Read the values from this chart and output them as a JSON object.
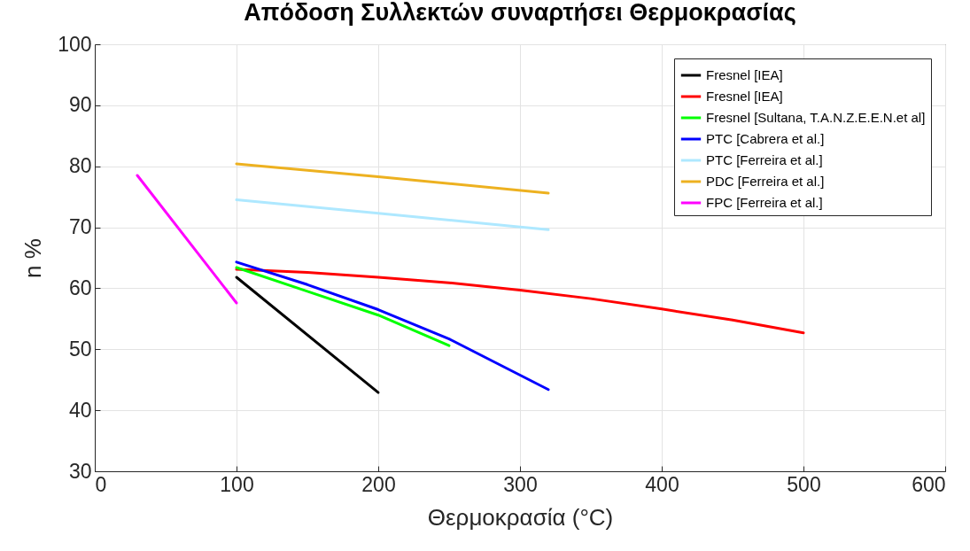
{
  "chart_data": {
    "type": "line",
    "title": "Απόδοση Συλλεκτών συναρτήσει Θερμοκρασίας",
    "xlabel": "Θερμοκρασία (°C)",
    "ylabel": "n %",
    "xlim": [
      0,
      600
    ],
    "xticks": [
      0,
      100,
      200,
      300,
      400,
      500,
      600
    ],
    "ylim": [
      30,
      100
    ],
    "yticks": [
      30,
      40,
      50,
      60,
      70,
      80,
      90,
      100
    ],
    "grid": true,
    "legend": "top right",
    "line_style": "solid",
    "series": [
      {
        "name": "Fresnel [IEA]",
        "color": "#000000",
        "x": [
          100,
          200
        ],
        "values": [
          61.8,
          42.9
        ]
      },
      {
        "name": "Fresnel [IEA]",
        "color": "#ff0000",
        "x": [
          100,
          150,
          200,
          250,
          300,
          350,
          400,
          450,
          500
        ],
        "values": [
          63.1,
          62.6,
          61.8,
          60.9,
          59.7,
          58.3,
          56.6,
          54.8,
          52.7
        ]
      },
      {
        "name": "Fresnel [Sultana, T.A.N.Z.E.E.N.et al]",
        "color": "#00ff00",
        "x": [
          100,
          150,
          200,
          250
        ],
        "values": [
          63.4,
          59.5,
          55.6,
          50.6
        ]
      },
      {
        "name": "PTC [Cabrera et al.]",
        "color": "#0000ff",
        "x": [
          100,
          150,
          200,
          250,
          320
        ],
        "values": [
          64.3,
          60.6,
          56.5,
          51.7,
          43.4
        ]
      },
      {
        "name": "PTC [Ferreira et al.]",
        "color": "#aee8ff",
        "x": [
          100,
          200,
          320
        ],
        "values": [
          74.5,
          72.3,
          69.6
        ]
      },
      {
        "name": "PDC [Ferreira et al.]",
        "color": "#edb120",
        "x": [
          100,
          200,
          320
        ],
        "values": [
          80.4,
          78.3,
          75.6
        ]
      },
      {
        "name": "FPC [Ferreira et al.]",
        "color": "#ff00ff",
        "x": [
          30,
          100
        ],
        "values": [
          78.5,
          57.6
        ]
      }
    ]
  }
}
